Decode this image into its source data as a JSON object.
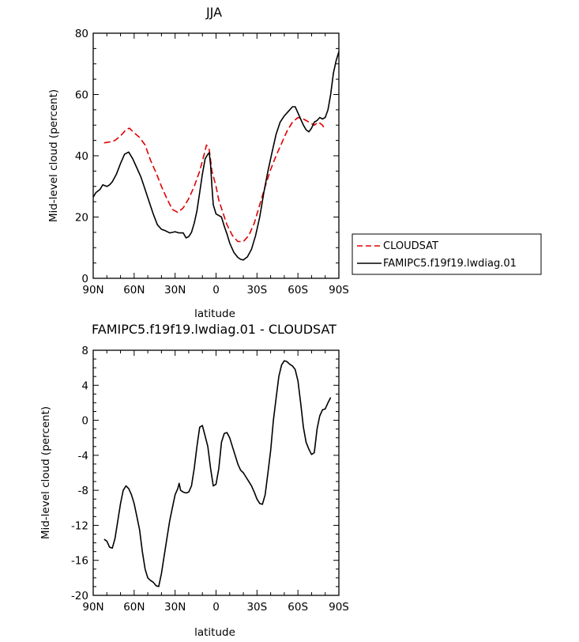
{
  "chart_data": [
    {
      "type": "line",
      "title": "JJA",
      "xlabel": "latitude",
      "ylabel": "Mid-level cloud (percent)",
      "xlim": [
        90,
        -90
      ],
      "ylim": [
        0,
        80
      ],
      "x_ticks": [
        90,
        60,
        30,
        0,
        -30,
        -60,
        -90
      ],
      "x_tick_labels": [
        "90N",
        "60N",
        "30N",
        "0",
        "30S",
        "60S",
        "90S"
      ],
      "y_ticks": [
        0,
        20,
        40,
        60,
        80
      ],
      "y_tick_labels": [
        "0",
        "20",
        "40",
        "60",
        "80"
      ],
      "grid": false,
      "legend_position": "right",
      "series": [
        {
          "name": "CLOUDSAT",
          "color": "#e00000",
          "dash": "dashed",
          "points": [
            [
              82,
              44.2
            ],
            [
              78,
              44.5
            ],
            [
              74,
              45
            ],
            [
              70,
              46.5
            ],
            [
              66,
              48.5
            ],
            [
              63.5,
              49
            ],
            [
              60,
              47.5
            ],
            [
              56,
              46
            ],
            [
              52,
              43.5
            ],
            [
              48,
              38.5
            ],
            [
              44,
              34.5
            ],
            [
              40,
              30
            ],
            [
              36,
              26
            ],
            [
              32,
              22.5
            ],
            [
              28,
              21.5
            ],
            [
              24,
              23
            ],
            [
              20,
              26
            ],
            [
              16,
              30
            ],
            [
              12,
              35
            ],
            [
              9,
              40
            ],
            [
              7,
              43.5
            ],
            [
              5,
              42
            ],
            [
              3,
              35
            ],
            [
              0,
              30
            ],
            [
              -2,
              25.5
            ],
            [
              -5,
              21.5
            ],
            [
              -8,
              17.5
            ],
            [
              -12,
              14
            ],
            [
              -16,
              12
            ],
            [
              -20,
              12
            ],
            [
              -24,
              14
            ],
            [
              -28,
              18
            ],
            [
              -32,
              24
            ],
            [
              -36,
              30
            ],
            [
              -40,
              35.5
            ],
            [
              -44,
              40
            ],
            [
              -48,
              44
            ],
            [
              -52,
              48
            ],
            [
              -56,
              51
            ],
            [
              -60,
              52.5
            ],
            [
              -64,
              52
            ],
            [
              -68,
              51
            ],
            [
              -72,
              50
            ],
            [
              -75,
              51
            ],
            [
              -78,
              50
            ],
            [
              -80,
              48.5
            ]
          ]
        },
        {
          "name": "FAMIPC5.f19f19.lwdiag.01",
          "color": "#000000",
          "dash": "solid",
          "points": [
            [
              90,
              26.5
            ],
            [
              88,
              28
            ],
            [
              85,
              29
            ],
            [
              83,
              30.5
            ],
            [
              80,
              30
            ],
            [
              78,
              30.5
            ],
            [
              76,
              31.5
            ],
            [
              73,
              34
            ],
            [
              70,
              37.5
            ],
            [
              67,
              40.5
            ],
            [
              64,
              41.2
            ],
            [
              61,
              39
            ],
            [
              58,
              36
            ],
            [
              55,
              33
            ],
            [
              52,
              29
            ],
            [
              49,
              25
            ],
            [
              46,
              21
            ],
            [
              43,
              17.5
            ],
            [
              40,
              16
            ],
            [
              37,
              15.5
            ],
            [
              34,
              14.8
            ],
            [
              30,
              15.2
            ],
            [
              27,
              14.8
            ],
            [
              24,
              14.8
            ],
            [
              22,
              13.2
            ],
            [
              20,
              13.6
            ],
            [
              18,
              15
            ],
            [
              16,
              18
            ],
            [
              14,
              22
            ],
            [
              12,
              28
            ],
            [
              10,
              34
            ],
            [
              8,
              39
            ],
            [
              6,
              40.5
            ],
            [
              5,
              41
            ],
            [
              4,
              37
            ],
            [
              3,
              30
            ],
            [
              2,
              24
            ],
            [
              0,
              21
            ],
            [
              -2,
              20.5
            ],
            [
              -4,
              20
            ],
            [
              -6,
              17
            ],
            [
              -8,
              14.5
            ],
            [
              -10,
              11.5
            ],
            [
              -13,
              8.5
            ],
            [
              -16,
              6.8
            ],
            [
              -18,
              6.2
            ],
            [
              -20,
              6
            ],
            [
              -23,
              7
            ],
            [
              -26,
              9.5
            ],
            [
              -29,
              14
            ],
            [
              -32,
              20
            ],
            [
              -35,
              28
            ],
            [
              -38,
              35
            ],
            [
              -41,
              41
            ],
            [
              -44,
              47
            ],
            [
              -47,
              51
            ],
            [
              -50,
              53
            ],
            [
              -53,
              54.5
            ],
            [
              -56,
              56
            ],
            [
              -58,
              56
            ],
            [
              -60,
              54
            ],
            [
              -62,
              52
            ],
            [
              -64,
              50
            ],
            [
              -66,
              48.5
            ],
            [
              -68,
              47.8
            ],
            [
              -70,
              49
            ],
            [
              -72,
              51
            ],
            [
              -74,
              51.5
            ],
            [
              -76,
              52.5
            ],
            [
              -78,
              52
            ],
            [
              -80,
              52.5
            ],
            [
              -82,
              55
            ],
            [
              -84,
              60
            ],
            [
              -86,
              67
            ],
            [
              -88,
              71
            ],
            [
              -90,
              74
            ]
          ]
        }
      ]
    },
    {
      "type": "line",
      "title": "FAMIPC5.f19f19.lwdiag.01 - CLOUDSAT",
      "xlabel": "latitude",
      "ylabel": "Mid-level cloud (percent)",
      "xlim": [
        90,
        -90
      ],
      "ylim": [
        -20,
        8
      ],
      "x_ticks": [
        90,
        60,
        30,
        0,
        -30,
        -60,
        -90
      ],
      "x_tick_labels": [
        "90N",
        "60N",
        "30N",
        "0",
        "30S",
        "60S",
        "90S"
      ],
      "y_ticks": [
        -20,
        -16,
        -12,
        -8,
        -4,
        0,
        4,
        8
      ],
      "y_tick_labels": [
        "-20",
        "-16",
        "-12",
        "-8",
        "-4",
        "0",
        "4",
        "8"
      ],
      "grid": false,
      "series": [
        {
          "color": "#000000",
          "dash": "solid",
          "points": [
            [
              82,
              -13.6
            ],
            [
              80,
              -13.8
            ],
            [
              78,
              -14.5
            ],
            [
              76,
              -14.6
            ],
            [
              74,
              -13.5
            ],
            [
              72,
              -11.5
            ],
            [
              70,
              -9.5
            ],
            [
              68,
              -8
            ],
            [
              66,
              -7.5
            ],
            [
              64,
              -7.8
            ],
            [
              62,
              -8.5
            ],
            [
              60,
              -9.5
            ],
            [
              58,
              -11
            ],
            [
              56,
              -12.5
            ],
            [
              54,
              -15
            ],
            [
              52,
              -17
            ],
            [
              50,
              -18
            ],
            [
              48,
              -18.3
            ],
            [
              46,
              -18.5
            ],
            [
              44,
              -18.9
            ],
            [
              42,
              -19
            ],
            [
              40,
              -17.5
            ],
            [
              38,
              -15.5
            ],
            [
              36,
              -13.5
            ],
            [
              34,
              -11.5
            ],
            [
              32,
              -10
            ],
            [
              30,
              -8.5
            ],
            [
              28,
              -7.8
            ],
            [
              27,
              -7.2
            ],
            [
              26,
              -8
            ],
            [
              24,
              -8.2
            ],
            [
              22,
              -8.3
            ],
            [
              20,
              -8.2
            ],
            [
              18,
              -7.5
            ],
            [
              16,
              -5.5
            ],
            [
              14,
              -3
            ],
            [
              12,
              -0.8
            ],
            [
              10,
              -0.6
            ],
            [
              8,
              -1.8
            ],
            [
              6,
              -3
            ],
            [
              4,
              -5.5
            ],
            [
              2,
              -7.5
            ],
            [
              0,
              -7.3
            ],
            [
              -2,
              -5.5
            ],
            [
              -4,
              -2.5
            ],
            [
              -6,
              -1.5
            ],
            [
              -8,
              -1.4
            ],
            [
              -10,
              -2
            ],
            [
              -12,
              -3
            ],
            [
              -14,
              -4
            ],
            [
              -16,
              -5
            ],
            [
              -18,
              -5.7
            ],
            [
              -20,
              -6
            ],
            [
              -22,
              -6.5
            ],
            [
              -24,
              -7
            ],
            [
              -26,
              -7.5
            ],
            [
              -28,
              -8.2
            ],
            [
              -30,
              -9
            ],
            [
              -32,
              -9.5
            ],
            [
              -34,
              -9.6
            ],
            [
              -36,
              -8.5
            ],
            [
              -38,
              -6
            ],
            [
              -40,
              -3.5
            ],
            [
              -42,
              0
            ],
            [
              -44,
              2.5
            ],
            [
              -46,
              5
            ],
            [
              -48,
              6.3
            ],
            [
              -50,
              6.8
            ],
            [
              -52,
              6.7
            ],
            [
              -54,
              6.4
            ],
            [
              -56,
              6.2
            ],
            [
              -58,
              5.8
            ],
            [
              -60,
              4.5
            ],
            [
              -62,
              2
            ],
            [
              -64,
              -0.8
            ],
            [
              -66,
              -2.5
            ],
            [
              -68,
              -3.3
            ],
            [
              -70,
              -3.9
            ],
            [
              -72,
              -3.7
            ],
            [
              -74,
              -1
            ],
            [
              -76,
              0.5
            ],
            [
              -78,
              1.2
            ],
            [
              -80,
              1.3
            ],
            [
              -82,
              2
            ],
            [
              -84,
              2.6
            ]
          ]
        }
      ]
    }
  ]
}
